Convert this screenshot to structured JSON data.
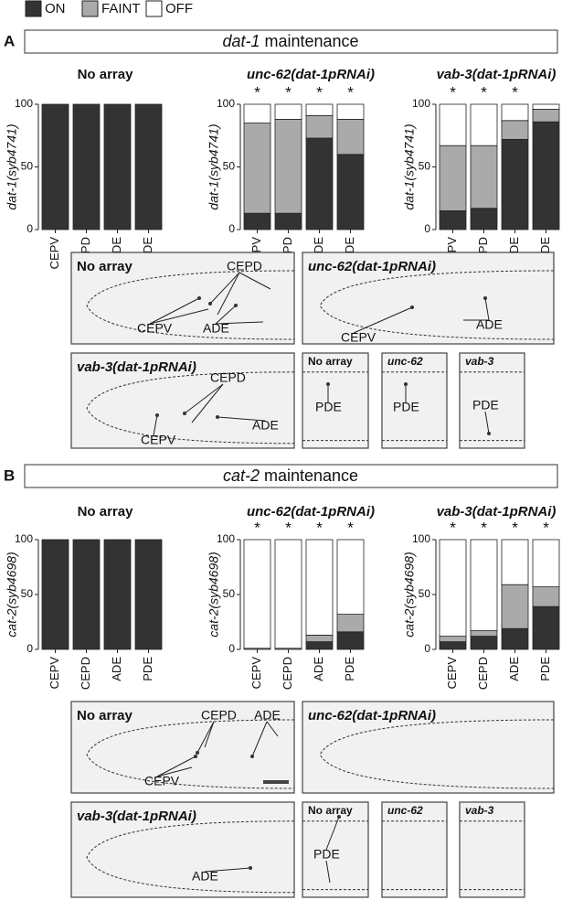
{
  "legend": [
    {
      "name": "ON",
      "color": "#333333"
    },
    {
      "name": "FAINT",
      "color": "#aaaaaa"
    },
    {
      "name": "OFF",
      "color": "#ffffff"
    }
  ],
  "panels": [
    {
      "letter": "A",
      "title_italic": "dat-1",
      "title_rest": "maintenance",
      "charts": [
        {
          "type": "bar",
          "title": "No array",
          "title_italic": false,
          "ylabel": "dat-1(syb4741)",
          "categories": [
            "CEPV",
            "CEPD",
            "ADE",
            "PDE"
          ],
          "ylim": [
            0,
            100
          ],
          "yticks": [
            0,
            50,
            100
          ],
          "stacks": [
            [
              100,
              100,
              100,
              100
            ],
            [
              0,
              0,
              0,
              0
            ],
            [
              0,
              0,
              0,
              0
            ]
          ],
          "annotations": [
            null,
            null,
            null,
            null
          ]
        },
        {
          "type": "bar",
          "title": "unc-62(dat-1pRNAi)",
          "title_italic": true,
          "ylabel": "dat-1(syb4741)",
          "categories": [
            "CEPV",
            "CEPD",
            "ADE",
            "PDE"
          ],
          "ylim": [
            0,
            100
          ],
          "yticks": [
            0,
            50,
            100
          ],
          "stacks": [
            [
              13,
              13,
              73,
              60
            ],
            [
              72,
              75,
              18,
              28
            ],
            [
              15,
              12,
              9,
              12
            ]
          ],
          "annotations": [
            "*",
            "*",
            "*",
            "*"
          ]
        },
        {
          "type": "bar",
          "title": "vab-3(dat-1pRNAi)",
          "title_italic": true,
          "ylabel": "dat-1(syb4741)",
          "categories": [
            "CEPV",
            "CEPD",
            "ADE",
            "PDE"
          ],
          "ylim": [
            0,
            100
          ],
          "yticks": [
            0,
            50,
            100
          ],
          "stacks": [
            [
              15,
              17,
              72,
              86
            ],
            [
              52,
              50,
              15,
              10
            ],
            [
              33,
              33,
              13,
              4
            ]
          ],
          "annotations": [
            "*",
            "*",
            "*",
            null
          ]
        }
      ],
      "images": [
        {
          "title": "No array",
          "labels": [
            "CEPD",
            "CEPV",
            "ADE"
          ]
        },
        {
          "title": "unc-62(dat-1pRNAi)",
          "labels": [
            "CEPV",
            "ADE"
          ]
        },
        {
          "title": "vab-3(dat-1pRNAi)",
          "labels": [
            "CEPD",
            "CEPV",
            "ADE"
          ]
        },
        {
          "title": "No array",
          "labels": [
            "PDE"
          ]
        },
        {
          "title": "unc-62",
          "labels": [
            "PDE"
          ]
        },
        {
          "title": "vab-3",
          "labels": [
            "PDE"
          ]
        }
      ]
    },
    {
      "letter": "B",
      "title_italic": "cat-2",
      "title_rest": "maintenance",
      "charts": [
        {
          "type": "bar",
          "title": "No array",
          "title_italic": false,
          "ylabel": "cat-2(syb4698)",
          "categories": [
            "CEPV",
            "CEPD",
            "ADE",
            "PDE"
          ],
          "ylim": [
            0,
            100
          ],
          "yticks": [
            0,
            50,
            100
          ],
          "stacks": [
            [
              100,
              100,
              100,
              100
            ],
            [
              0,
              0,
              0,
              0
            ],
            [
              0,
              0,
              0,
              0
            ]
          ],
          "annotations": [
            null,
            null,
            null,
            null
          ]
        },
        {
          "type": "bar",
          "title": "unc-62(dat-1pRNAi)",
          "title_italic": true,
          "ylabel": "cat-2(syb4698)",
          "categories": [
            "CEPV",
            "CEPD",
            "ADE",
            "PDE"
          ],
          "ylim": [
            0,
            100
          ],
          "yticks": [
            0,
            50,
            100
          ],
          "stacks": [
            [
              0,
              0,
              7,
              16
            ],
            [
              1,
              1,
              6,
              16
            ],
            [
              99,
              99,
              87,
              68
            ]
          ],
          "annotations": [
            "*",
            "*",
            "*",
            "*"
          ]
        },
        {
          "type": "bar",
          "title": "vab-3(dat-1pRNAi)",
          "title_italic": true,
          "ylabel": "cat-2(syb4698)",
          "categories": [
            "CEPV",
            "CEPD",
            "ADE",
            "PDE"
          ],
          "ylim": [
            0,
            100
          ],
          "yticks": [
            0,
            50,
            100
          ],
          "stacks": [
            [
              7,
              12,
              19,
              39
            ],
            [
              5,
              5,
              40,
              18
            ],
            [
              88,
              83,
              41,
              43
            ]
          ],
          "annotations": [
            "*",
            "*",
            "*",
            "*"
          ]
        }
      ],
      "images": [
        {
          "title": "No array",
          "labels": [
            "CEPD",
            "ADE",
            "CEPV"
          ]
        },
        {
          "title": "unc-62(dat-1pRNAi)",
          "labels": []
        },
        {
          "title": "vab-3(dat-1pRNAi)",
          "labels": [
            "ADE"
          ]
        },
        {
          "title": "No array",
          "labels": [
            "PDE"
          ]
        },
        {
          "title": "unc-62",
          "labels": []
        },
        {
          "title": "vab-3",
          "labels": []
        }
      ]
    }
  ]
}
